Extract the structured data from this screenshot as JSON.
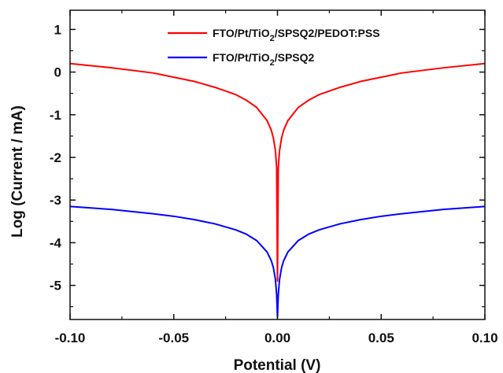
{
  "chart_data": {
    "type": "line",
    "xlabel": "Potential (V)",
    "ylabel": "Log (Current / mA)",
    "xlim": [
      -0.1,
      0.1
    ],
    "ylim": [
      -5.8,
      1.45
    ],
    "xticks": [
      -0.1,
      -0.05,
      0.0,
      0.05,
      0.1
    ],
    "xtick_labels": [
      "-0.10",
      "-0.05",
      "0.00",
      "0.05",
      "0.10"
    ],
    "yticks": [
      1,
      0,
      -1,
      -2,
      -3,
      -4,
      -5
    ],
    "ytick_labels": [
      "1",
      "0",
      "-1",
      "-2",
      "-3",
      "-4",
      "-5"
    ],
    "grid": false,
    "legend_position": "top-right",
    "series": [
      {
        "name_parts": [
          "FTO/Pt/TiO",
          "2",
          "/SPSQ2/PEDOT:PSS"
        ],
        "color": "#ff0000",
        "x": [
          -0.1,
          -0.08,
          -0.06,
          -0.05,
          -0.04,
          -0.03,
          -0.02,
          -0.015,
          -0.01,
          -0.005,
          -0.003,
          -0.002,
          -0.001,
          -0.0004,
          0.0,
          0.0004,
          0.001,
          0.002,
          0.003,
          0.005,
          0.01,
          0.015,
          0.02,
          0.03,
          0.04,
          0.05,
          0.06,
          0.08,
          0.1
        ],
        "y": [
          0.2,
          0.1,
          -0.02,
          -0.12,
          -0.22,
          -0.36,
          -0.53,
          -0.66,
          -0.83,
          -1.14,
          -1.36,
          -1.54,
          -1.84,
          -2.24,
          -4.9,
          -2.24,
          -1.84,
          -1.54,
          -1.36,
          -1.14,
          -0.83,
          -0.66,
          -0.53,
          -0.36,
          -0.22,
          -0.12,
          -0.02,
          0.1,
          0.2
        ]
      },
      {
        "name_parts": [
          "FTO/Pt/TiO",
          "2",
          "/SPSQ2"
        ],
        "color": "#0000ff",
        "x": [
          -0.1,
          -0.08,
          -0.06,
          -0.05,
          -0.04,
          -0.03,
          -0.02,
          -0.015,
          -0.01,
          -0.005,
          -0.003,
          -0.002,
          -0.001,
          -0.0004,
          0.0,
          0.0004,
          0.001,
          0.002,
          0.003,
          0.005,
          0.01,
          0.015,
          0.02,
          0.03,
          0.04,
          0.05,
          0.06,
          0.08,
          0.1
        ],
        "y": [
          -3.15,
          -3.22,
          -3.32,
          -3.38,
          -3.46,
          -3.56,
          -3.7,
          -3.8,
          -3.95,
          -4.22,
          -4.42,
          -4.58,
          -4.86,
          -5.22,
          -5.75,
          -5.22,
          -4.86,
          -4.58,
          -4.42,
          -4.22,
          -3.95,
          -3.8,
          -3.7,
          -3.56,
          -3.46,
          -3.38,
          -3.32,
          -3.22,
          -3.15
        ]
      }
    ]
  }
}
